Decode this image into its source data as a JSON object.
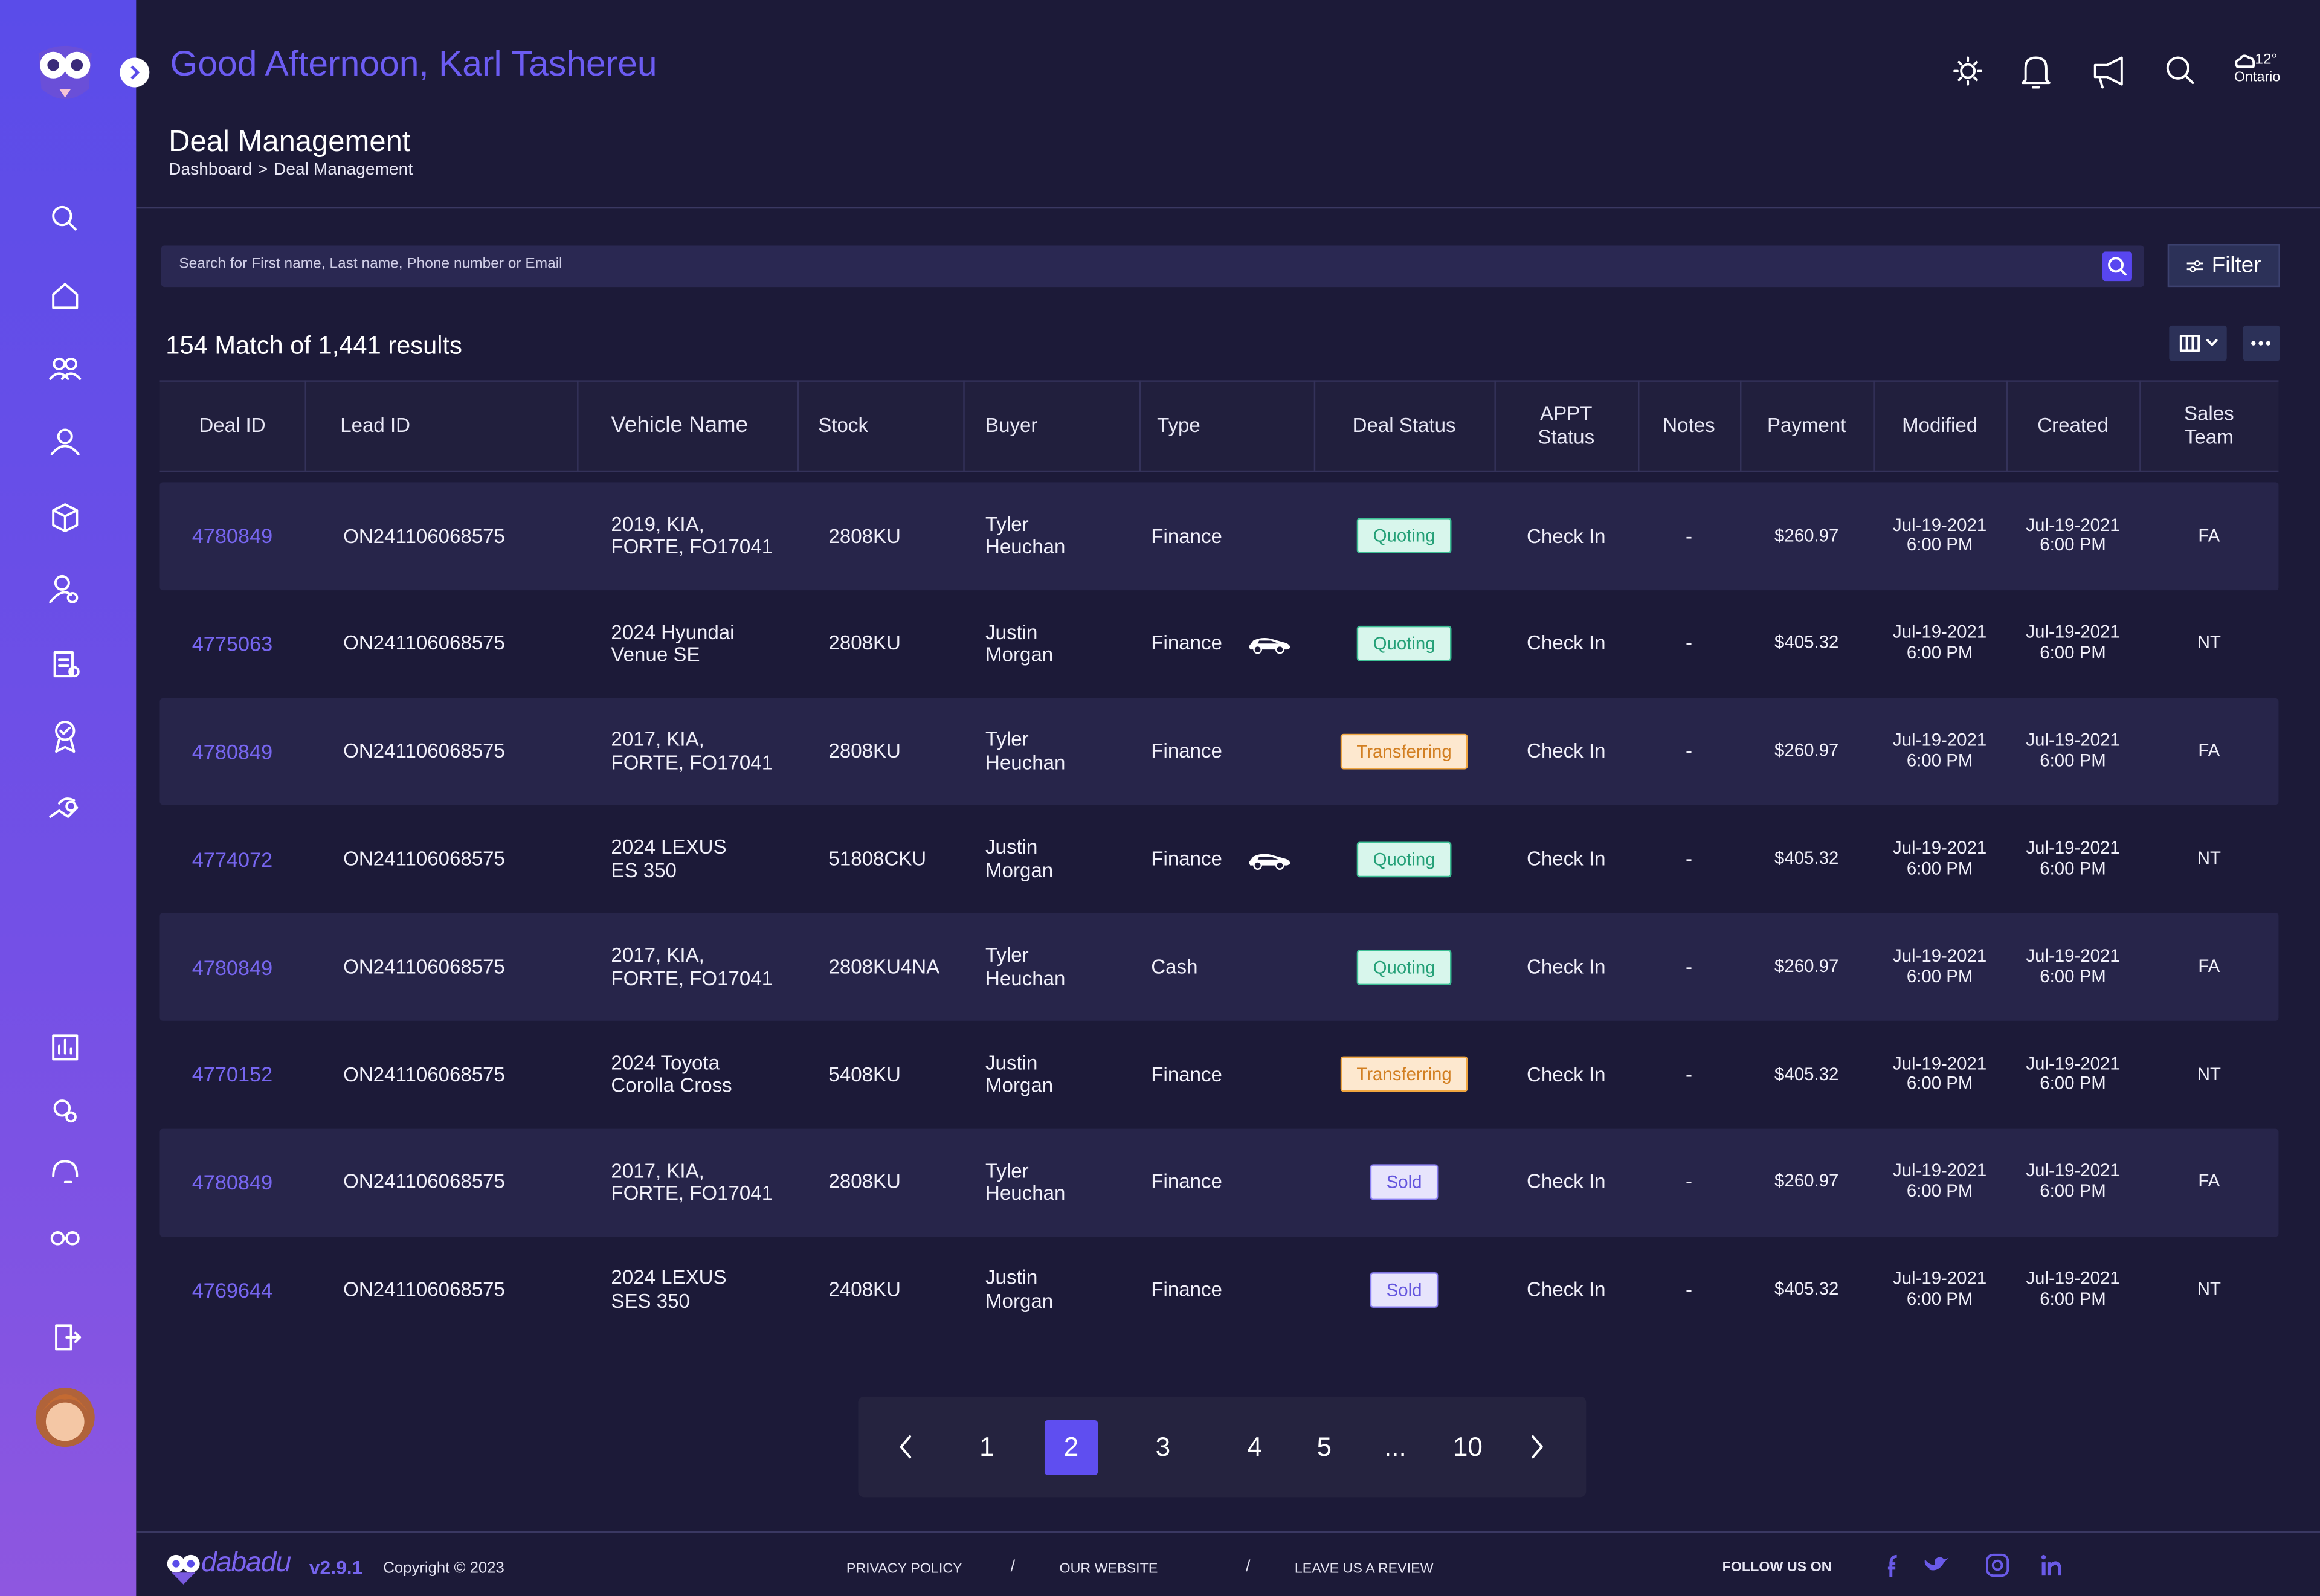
{
  "header": {
    "greeting": "Good Afternoon, Karl Tashereu",
    "weather_temp": "12°",
    "weather_location": "Ontario"
  },
  "page": {
    "title": "Deal Management",
    "breadcrumb": [
      "Dashboard",
      "Deal Management"
    ],
    "breadcrumb_separator": ">"
  },
  "search": {
    "placeholder": "Search for First name, Last name, Phone number or Email",
    "filter_label": "Filter"
  },
  "results_summary": "154 Match of 1,441 results",
  "table": {
    "columns": [
      "Deal ID",
      "Lead ID",
      "Vehicle Name",
      "Stock",
      "Buyer",
      "Type",
      "Deal Status",
      "APPT\nStatus",
      "Notes",
      "Payment",
      "Modified",
      "Created",
      "Sales\nTeam"
    ],
    "rows": [
      {
        "deal_id": "4780849",
        "lead_id": "ON241106068575",
        "vehicle": "2019, KIA,\nFORTE, FO17041",
        "stock": "2808KU",
        "buyer": "Tyler\nHeuchan",
        "type": "Finance",
        "car_icon": false,
        "deal_status": "Quoting",
        "status_tone": "green",
        "appt_status": "Check In",
        "notes": "-",
        "payment": "$260.97",
        "modified": "Jul-19-2021\n6:00 PM",
        "created": "Jul-19-2021\n6:00 PM",
        "sales_team": "FA"
      },
      {
        "deal_id": "4775063",
        "lead_id": "ON241106068575",
        "vehicle": "2024 Hyundai\nVenue SE",
        "stock": "2808KU",
        "buyer": "Justin\nMorgan",
        "type": "Finance",
        "car_icon": true,
        "deal_status": "Quoting",
        "status_tone": "green",
        "appt_status": "Check In",
        "notes": "-",
        "payment": "$405.32",
        "modified": "Jul-19-2021\n6:00 PM",
        "created": "Jul-19-2021\n6:00 PM",
        "sales_team": "NT"
      },
      {
        "deal_id": "4780849",
        "lead_id": "ON241106068575",
        "vehicle": "2017, KIA,\nFORTE, FO17041",
        "stock": "2808KU",
        "buyer": "Tyler\nHeuchan",
        "type": "Finance",
        "car_icon": false,
        "deal_status": "Transferring",
        "status_tone": "orange",
        "appt_status": "Check In",
        "notes": "-",
        "payment": "$260.97",
        "modified": "Jul-19-2021\n6:00 PM",
        "created": "Jul-19-2021\n6:00 PM",
        "sales_team": "FA"
      },
      {
        "deal_id": "4774072",
        "lead_id": "ON241106068575",
        "vehicle": "2024 LEXUS\nES 350",
        "stock": "51808CKU",
        "buyer": "Justin\nMorgan",
        "type": "Finance",
        "car_icon": true,
        "deal_status": "Quoting",
        "status_tone": "green",
        "appt_status": "Check In",
        "notes": "-",
        "payment": "$405.32",
        "modified": "Jul-19-2021\n6:00 PM",
        "created": "Jul-19-2021\n6:00 PM",
        "sales_team": "NT"
      },
      {
        "deal_id": "4780849",
        "lead_id": "ON241106068575",
        "vehicle": "2017, KIA,\nFORTE, FO17041",
        "stock": "2808KU4NA",
        "buyer": "Tyler\nHeuchan",
        "type": "Cash",
        "car_icon": false,
        "deal_status": "Quoting",
        "status_tone": "green",
        "appt_status": "Check In",
        "notes": "-",
        "payment": "$260.97",
        "modified": "Jul-19-2021\n6:00 PM",
        "created": "Jul-19-2021\n6:00 PM",
        "sales_team": "FA"
      },
      {
        "deal_id": "4770152",
        "lead_id": "ON241106068575",
        "vehicle": "2024 Toyota\nCorolla Cross",
        "stock": "5408KU",
        "buyer": "Justin\nMorgan",
        "type": "Finance",
        "car_icon": false,
        "deal_status": "Transferring",
        "status_tone": "orange",
        "appt_status": "Check In",
        "notes": "-",
        "payment": "$405.32",
        "modified": "Jul-19-2021\n6:00 PM",
        "created": "Jul-19-2021\n6:00 PM",
        "sales_team": "NT"
      },
      {
        "deal_id": "4780849",
        "lead_id": "ON241106068575",
        "vehicle": "2017, KIA,\nFORTE, FO17041",
        "stock": "2808KU",
        "buyer": "Tyler\nHeuchan",
        "type": "Finance",
        "car_icon": false,
        "deal_status": "Sold",
        "status_tone": "purple",
        "appt_status": "Check In",
        "notes": "-",
        "payment": "$260.97",
        "modified": "Jul-19-2021\n6:00 PM",
        "created": "Jul-19-2021\n6:00 PM",
        "sales_team": "FA"
      },
      {
        "deal_id": "4769644",
        "lead_id": "ON241106068575",
        "vehicle": "2024 LEXUS\nSES 350",
        "stock": "2408KU",
        "buyer": "Justin\nMorgan",
        "type": "Finance",
        "car_icon": false,
        "deal_status": "Sold",
        "status_tone": "purple",
        "appt_status": "Check In",
        "notes": "-",
        "payment": "$405.32",
        "modified": "Jul-19-2021\n6:00 PM",
        "created": "Jul-19-2021\n6:00 PM",
        "sales_team": "NT"
      }
    ]
  },
  "pagination": {
    "pages": [
      "1",
      "2",
      "3",
      "4",
      "5",
      "...",
      "10"
    ],
    "current": "2"
  },
  "footer": {
    "brand": "dabadu",
    "version": "v2.9.1",
    "copyright": "Copyright © 2023",
    "links": [
      "PRIVACY POLICY",
      "OUR WEBSITE",
      "LEAVE US A REVIEW"
    ],
    "link_separator": "/",
    "follow": "FOLLOW US ON"
  }
}
